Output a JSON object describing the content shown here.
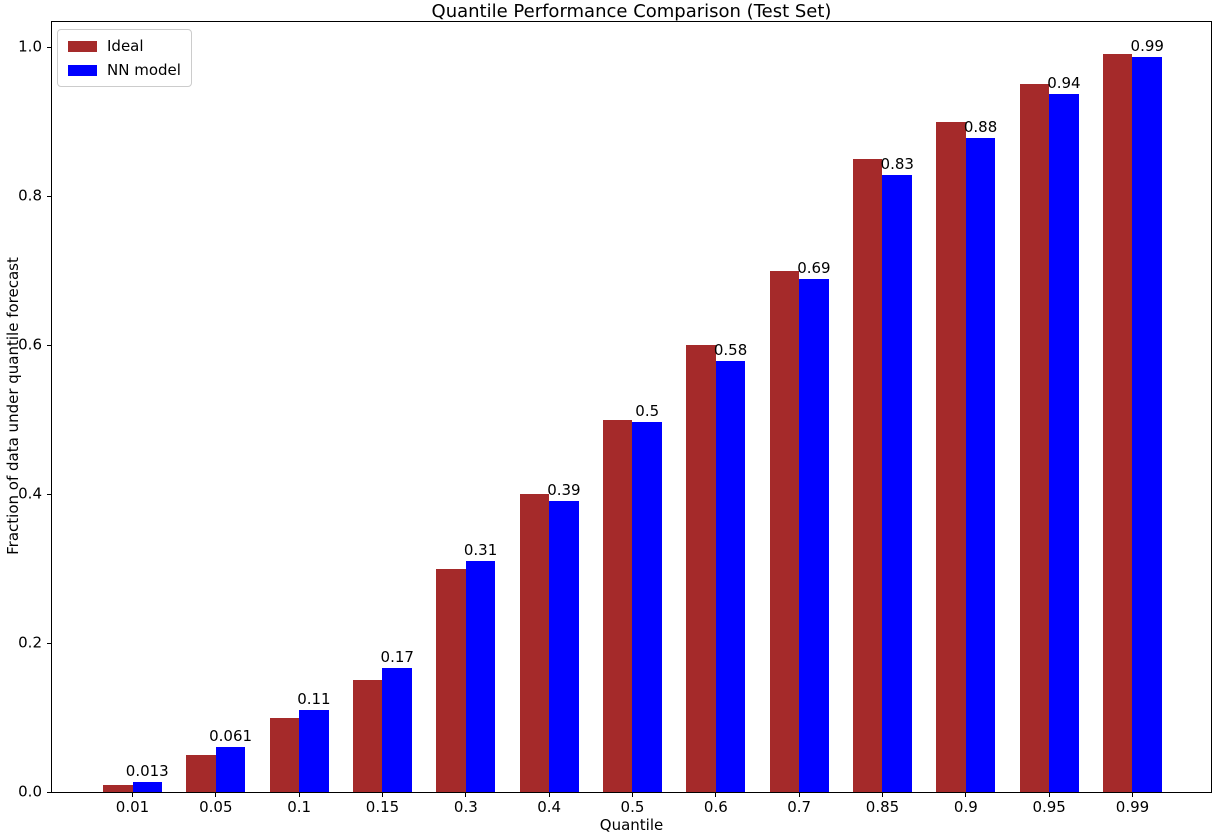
{
  "figure": {
    "title": "Quantile Performance Comparison (Test Set)"
  },
  "chart_data": {
    "type": "bar",
    "title": "Quantile Performance Comparison (Test Set)",
    "xlabel": "Quantile",
    "ylabel": "Fraction of data under quantile forecast",
    "categories": [
      "0.01",
      "0.05",
      "0.1",
      "0.15",
      "0.3",
      "0.4",
      "0.5",
      "0.6",
      "0.7",
      "0.85",
      "0.9",
      "0.95",
      "0.99"
    ],
    "series": [
      {
        "name": "Ideal",
        "color": "#a52a2a",
        "values": [
          0.01,
          0.05,
          0.1,
          0.15,
          0.3,
          0.4,
          0.5,
          0.6,
          0.7,
          0.85,
          0.9,
          0.95,
          0.99
        ]
      },
      {
        "name": "NN model",
        "color": "#0000ff",
        "values": [
          0.013,
          0.061,
          0.11,
          0.167,
          0.31,
          0.39,
          0.497,
          0.579,
          0.688,
          0.828,
          0.878,
          0.937,
          0.987
        ],
        "bar_labels": [
          "0.013",
          "0.061",
          "0.11",
          "0.17",
          "0.31",
          "0.39",
          "0.5",
          "0.58",
          "0.69",
          "0.83",
          "0.88",
          "0.94",
          "0.99"
        ]
      }
    ],
    "yticks": [
      0.0,
      0.2,
      0.4,
      0.6,
      0.8,
      1.0
    ],
    "ytick_labels": [
      "0.0",
      "0.2",
      "0.4",
      "0.6",
      "0.8",
      "1.0"
    ],
    "ylim": [
      0,
      1.034
    ],
    "grid": false,
    "legend": {
      "position": "upper left",
      "entries": [
        "Ideal",
        "NN model"
      ]
    },
    "colors": {
      "background": "#ffffff",
      "spine": "#000000",
      "text": "#000000"
    }
  }
}
